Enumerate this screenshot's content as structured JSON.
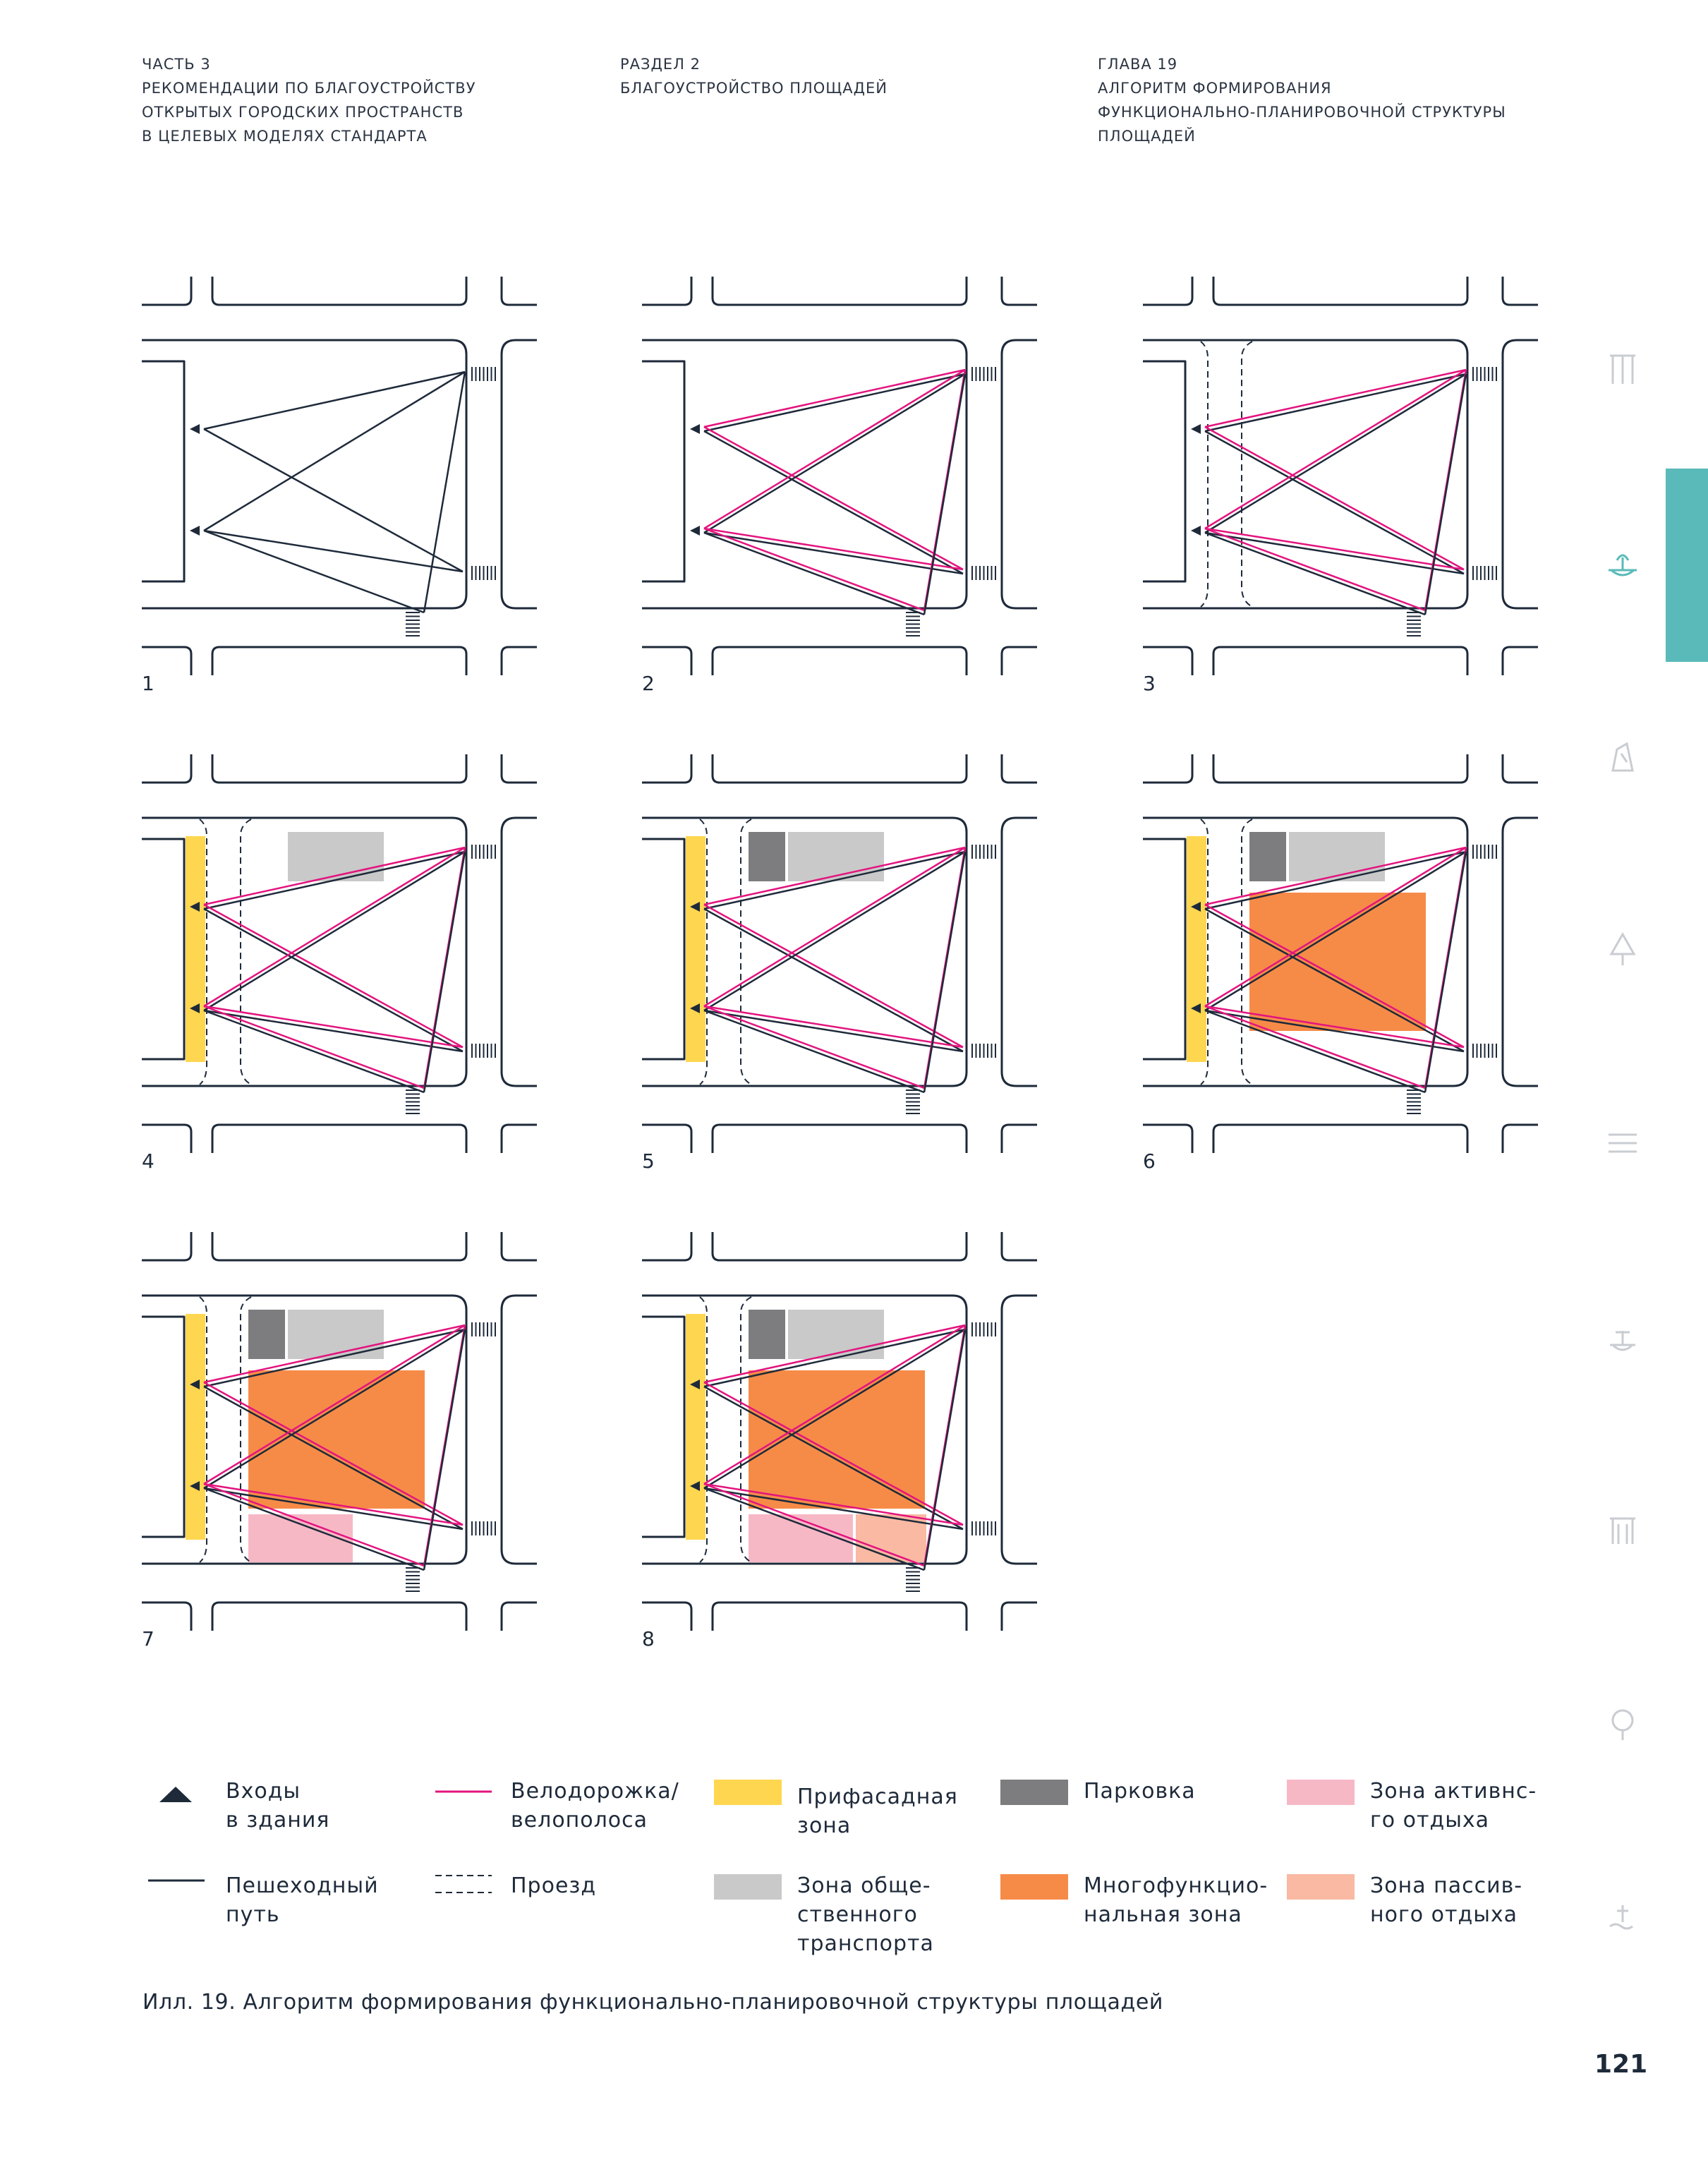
{
  "header": {
    "col1": [
      "ЧАСТЬ 3",
      "РЕКОМЕНДАЦИИ ПО БЛАГОУСТРОЙСТВУ",
      "ОТКРЫТЫХ ГОРОДСКИХ ПРОСТРАНСТВ",
      "В ЦЕЛЕВЫХ МОДЕЛЯХ СТАНДАРТА"
    ],
    "col2": [
      "РАЗДЕЛ 2",
      "БЛАГОУСТРОЙСТВО ПЛОЩАДЕЙ"
    ],
    "col3": [
      "ГЛАВА 19",
      "АЛГОРИТМ ФОРМИРОВАНИЯ",
      "ФУНКЦИОНАЛЬНО-ПЛАНИРОВОЧНОЙ СТРУКТУРЫ",
      "ПЛОЩАДЕЙ"
    ]
  },
  "diagrams": [
    {
      "label": "1",
      "bike": false,
      "proezd": false,
      "facade": false,
      "transport": false,
      "parking": false,
      "multi": false,
      "active": false,
      "passive": false
    },
    {
      "label": "2",
      "bike": true,
      "proezd": false,
      "facade": false,
      "transport": false,
      "parking": false,
      "multi": false,
      "active": false,
      "passive": false
    },
    {
      "label": "3",
      "bike": true,
      "proezd": true,
      "facade": false,
      "transport": false,
      "parking": false,
      "multi": false,
      "active": false,
      "passive": false
    },
    {
      "label": "4",
      "bike": true,
      "proezd": true,
      "facade": true,
      "transport": true,
      "parking": false,
      "multi": false,
      "active": false,
      "passive": false
    },
    {
      "label": "5",
      "bike": true,
      "proezd": true,
      "facade": true,
      "transport": true,
      "parking": true,
      "multi": false,
      "active": false,
      "passive": false
    },
    {
      "label": "6",
      "bike": true,
      "proezd": true,
      "facade": true,
      "transport": true,
      "parking": true,
      "multi": true,
      "active": false,
      "passive": false
    },
    {
      "label": "7",
      "bike": true,
      "proezd": true,
      "facade": true,
      "transport": true,
      "parking": true,
      "multi": true,
      "active": true,
      "passive": false
    },
    {
      "label": "8",
      "bike": true,
      "proezd": true,
      "facade": true,
      "transport": true,
      "parking": true,
      "multi": true,
      "active": true,
      "passive": true
    }
  ],
  "legend": {
    "entrances": [
      "Входы",
      "в здания"
    ],
    "pedestrian": [
      "Пешеходный",
      "путь"
    ],
    "bike": [
      "Велодорожка/",
      "велополоса"
    ],
    "proezd": [
      "Проезд"
    ],
    "facade": [
      "Прифасадная",
      "зона"
    ],
    "transport": [
      "Зона обще-",
      "ственного",
      "транспорта"
    ],
    "parking": [
      "Парковка"
    ],
    "multi": [
      "Многофункцио-",
      "нальная зона"
    ],
    "active": [
      "Зона активнс-",
      "го отдыха"
    ],
    "passive": [
      "Зона пассив-",
      "ного отдыха"
    ]
  },
  "colors": {
    "line": "#1e2a3a",
    "bike": "#e3147e",
    "facade": "#ffd64f",
    "transport": "#c9c9c9",
    "parking": "#7d7d7f",
    "multi": "#f68b48",
    "active": "#f7b8c6",
    "passive": "#f9b9a3",
    "accent": "#5abab9",
    "icon": "#c9ccd1"
  },
  "sidebar_icons": [
    "columns-icon",
    "fountain-icon",
    "sculpture-icon",
    "tree-icon",
    "lines-icon",
    "fountain-outline-icon",
    "gate-icon",
    "round-tree-icon",
    "waterfront-icon"
  ],
  "caption": "Илл. 19. Алгоритм формирования функционально-планировочной структуры площадей",
  "page_number": "121"
}
